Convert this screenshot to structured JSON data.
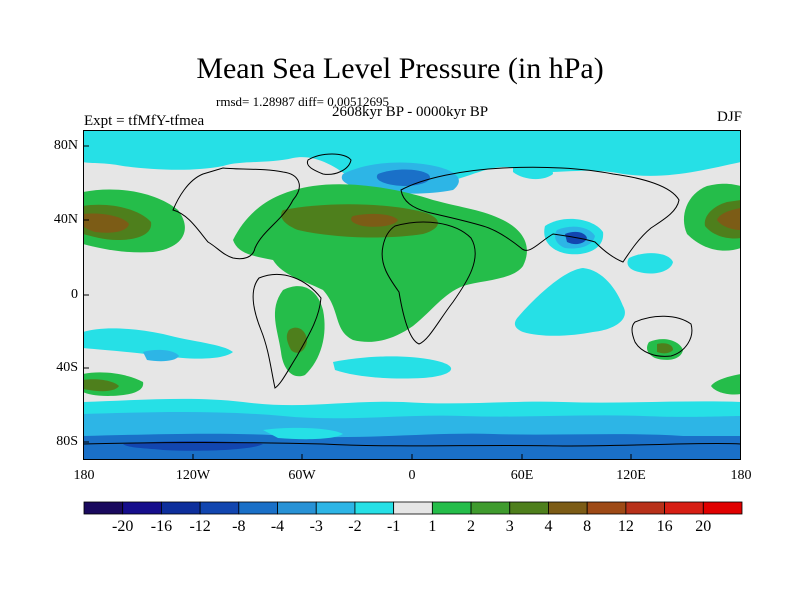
{
  "header": {
    "title": "Mean Sea Level Pressure (in hPa)",
    "stats": "rmsd= 1.28987 diff= 0.00512695",
    "period": "2608kyr BP - 0000kyr BP",
    "experiment": "Expt = tfMfY-tfmea",
    "season": "DJF"
  },
  "axes": {
    "lat_labels": [
      "80N",
      "40N",
      "0",
      "40S",
      "80S"
    ],
    "lon_labels": [
      "180",
      "120W",
      "60W",
      "0",
      "60E",
      "120E",
      "180"
    ]
  },
  "colorbar": {
    "labels": [
      "-20",
      "-16",
      "-12",
      "-8",
      "-4",
      "-3",
      "-2",
      "-1",
      "1",
      "2",
      "3",
      "4",
      "8",
      "12",
      "16",
      "20"
    ],
    "colors": [
      "#1a0a5e",
      "#160e8c",
      "#0e2f9c",
      "#1246b0",
      "#1a70c8",
      "#2892d6",
      "#2db5e6",
      "#26e0e6",
      "#e6e6e6",
      "#25bd4a",
      "#3f9b2e",
      "#4e7f1c",
      "#7c5c16",
      "#9e4a16",
      "#b8311a",
      "#d71e14",
      "#e00000"
    ]
  },
  "field_colors": {
    "neutral": "#e6e6e6",
    "cyan": "#26e0e6",
    "light_blue": "#2db5e6",
    "blue": "#1a70c8",
    "dark_blue": "#1246b0",
    "green": "#25bd4a",
    "olive": "#4e7f1c",
    "brown": "#7c5c16"
  }
}
